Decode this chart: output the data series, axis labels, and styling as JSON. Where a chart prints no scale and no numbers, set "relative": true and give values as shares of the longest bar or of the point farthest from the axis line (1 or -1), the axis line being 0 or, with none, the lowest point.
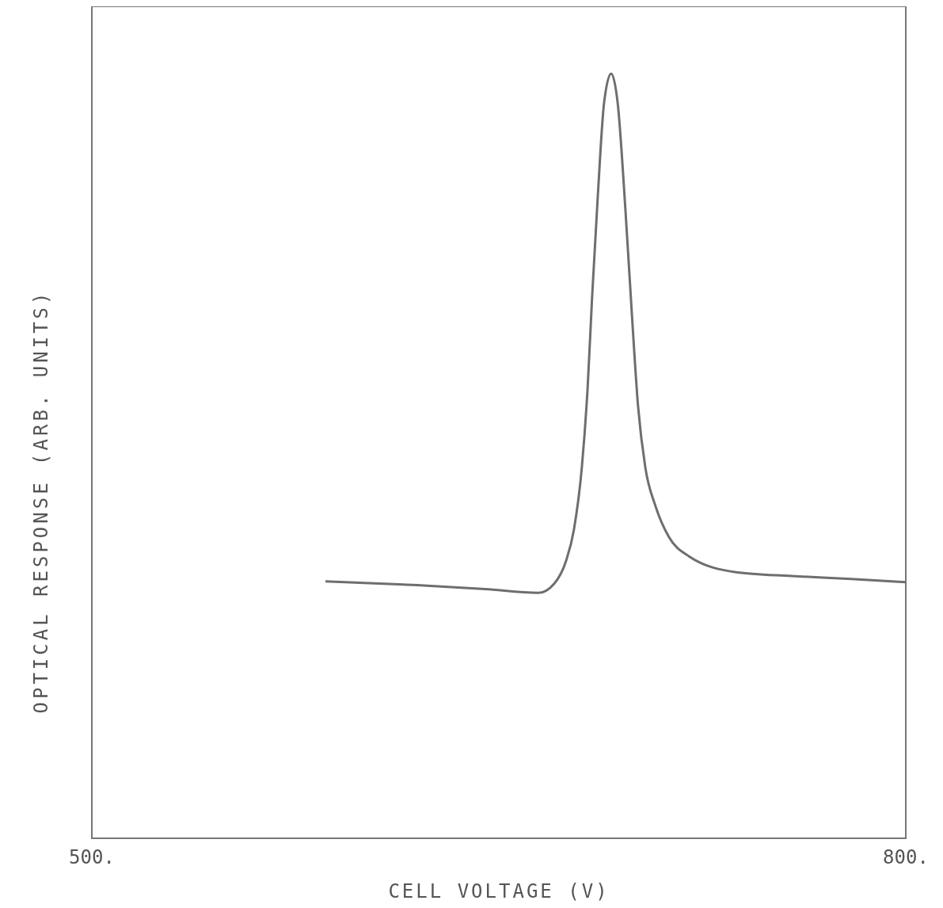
{
  "chart_data": {
    "type": "line",
    "xlabel": "CELL VOLTAGE (V)",
    "ylabel": "OPTICAL RESPONSE (ARB. UNITS)",
    "relative": true,
    "xlim": [
      500,
      800
    ],
    "xticks": [
      {
        "value": 500,
        "label": "500."
      },
      {
        "value": 800,
        "label": "800."
      }
    ],
    "series": [
      {
        "color": "#6e6e6e",
        "x": [
          586.1,
          620,
          645,
          664.6,
          670.4,
          674.8,
          677.7,
          680.6,
          682.7,
          684.4,
          686.5,
          688.8,
          691.4,
          693.8,
          696.7,
          699.0,
          701.3,
          704.0,
          707.8,
          712.7,
          720.0,
          737.5,
          758.0,
          780,
          800
        ],
        "values": [
          0.336,
          0.331,
          0.326,
          0.321,
          0.333,
          0.363,
          0.404,
          0.485,
          0.587,
          0.709,
          0.841,
          0.962,
          1,
          0.962,
          0.82,
          0.688,
          0.566,
          0.485,
          0.434,
          0.394,
          0.369,
          0.348,
          0.343,
          0.339,
          0.335
        ]
      }
    ]
  }
}
